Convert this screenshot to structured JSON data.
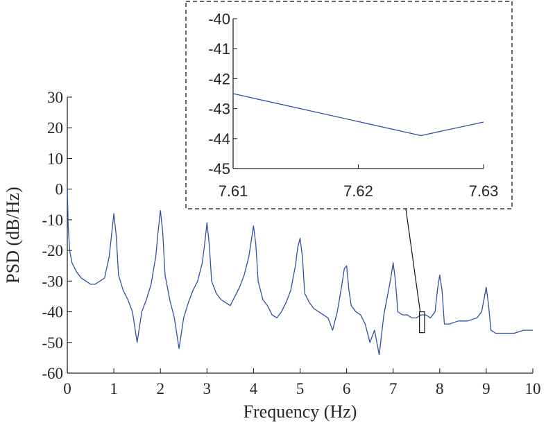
{
  "chart_data": [
    {
      "type": "line",
      "title": "",
      "xlabel": "Frequency (Hz)",
      "ylabel": "PSD (dB/Hz)",
      "xlim": [
        0,
        10
      ],
      "ylim": [
        -60,
        30
      ],
      "xticks": [
        0,
        1,
        2,
        3,
        4,
        5,
        6,
        7,
        8,
        9,
        10
      ],
      "yticks": [
        30,
        20,
        10,
        0,
        -10,
        -20,
        -30,
        -40,
        -50,
        -60
      ],
      "grid": false,
      "legend": "none",
      "series_color": "#3050a0",
      "series": [
        {
          "x": [
            0,
            0.02,
            0.05,
            0.1,
            0.2,
            0.3,
            0.4,
            0.5,
            0.6,
            0.7,
            0.8,
            0.9,
            0.95,
            1.0,
            1.05,
            1.1,
            1.2,
            1.3,
            1.4,
            1.5,
            1.6,
            1.7,
            1.8,
            1.9,
            1.95,
            2.0,
            2.05,
            2.1,
            2.2,
            2.3,
            2.4,
            2.5,
            2.6,
            2.7,
            2.8,
            2.9,
            2.95,
            3.0,
            3.05,
            3.1,
            3.2,
            3.3,
            3.4,
            3.5,
            3.6,
            3.7,
            3.8,
            3.9,
            3.95,
            4.0,
            4.05,
            4.1,
            4.2,
            4.3,
            4.4,
            4.5,
            4.6,
            4.7,
            4.8,
            4.9,
            4.95,
            5.0,
            5.05,
            5.1,
            5.2,
            5.3,
            5.4,
            5.5,
            5.6,
            5.7,
            5.8,
            5.9,
            5.95,
            6.0,
            6.05,
            6.1,
            6.2,
            6.3,
            6.4,
            6.5,
            6.6,
            6.7,
            6.8,
            6.9,
            6.95,
            7.0,
            7.05,
            7.1,
            7.2,
            7.3,
            7.4,
            7.5,
            7.6,
            7.7,
            7.8,
            7.9,
            7.95,
            8.0,
            8.05,
            8.1,
            8.2,
            8.4,
            8.6,
            8.8,
            8.9,
            8.95,
            9.0,
            9.05,
            9.1,
            9.2,
            9.4,
            9.6,
            9.8,
            9.9,
            10.0
          ],
          "y": [
            0,
            -12,
            -20,
            -24,
            -27,
            -29,
            -30,
            -31,
            -31,
            -30,
            -29,
            -22,
            -15,
            -8,
            -15,
            -28,
            -33,
            -36,
            -40,
            -50,
            -40,
            -36,
            -31,
            -22,
            -14,
            -7,
            -14,
            -28,
            -36,
            -42,
            -52,
            -42,
            -37,
            -33,
            -30,
            -24,
            -18,
            -11,
            -18,
            -30,
            -34,
            -36,
            -37,
            -38,
            -35,
            -32,
            -28,
            -22,
            -17,
            -12,
            -18,
            -30,
            -36,
            -38,
            -41,
            -42,
            -40,
            -37,
            -33,
            -25,
            -19,
            -16,
            -22,
            -34,
            -37,
            -39,
            -40,
            -41,
            -42,
            -46,
            -40,
            -31,
            -26,
            -25,
            -33,
            -38,
            -40,
            -41,
            -44,
            -50,
            -46,
            -54,
            -41,
            -33,
            -29,
            -24,
            -30,
            -40,
            -41,
            -41,
            -42,
            -42,
            -41,
            -41,
            -42,
            -40,
            -33,
            -28,
            -33,
            -44,
            -44,
            -43,
            -43,
            -42,
            -40,
            -36,
            -32,
            -38,
            -46,
            -47,
            -47,
            -47,
            -46,
            -46,
            -46
          ]
        }
      ]
    },
    {
      "type": "line",
      "title": "",
      "xlabel": "",
      "ylabel": "",
      "xlim": [
        7.61,
        7.63
      ],
      "ylim": [
        -45,
        -40
      ],
      "xticks": [
        7.61,
        7.62,
        7.63
      ],
      "yticks": [
        -40,
        -41,
        -42,
        -43,
        -44,
        -45
      ],
      "grid": false,
      "legend": "none",
      "series_color": "#3050a0",
      "series": [
        {
          "x": [
            7.61,
            7.625,
            7.63
          ],
          "y": [
            -42.5,
            -43.9,
            -43.45
          ]
        }
      ]
    }
  ]
}
